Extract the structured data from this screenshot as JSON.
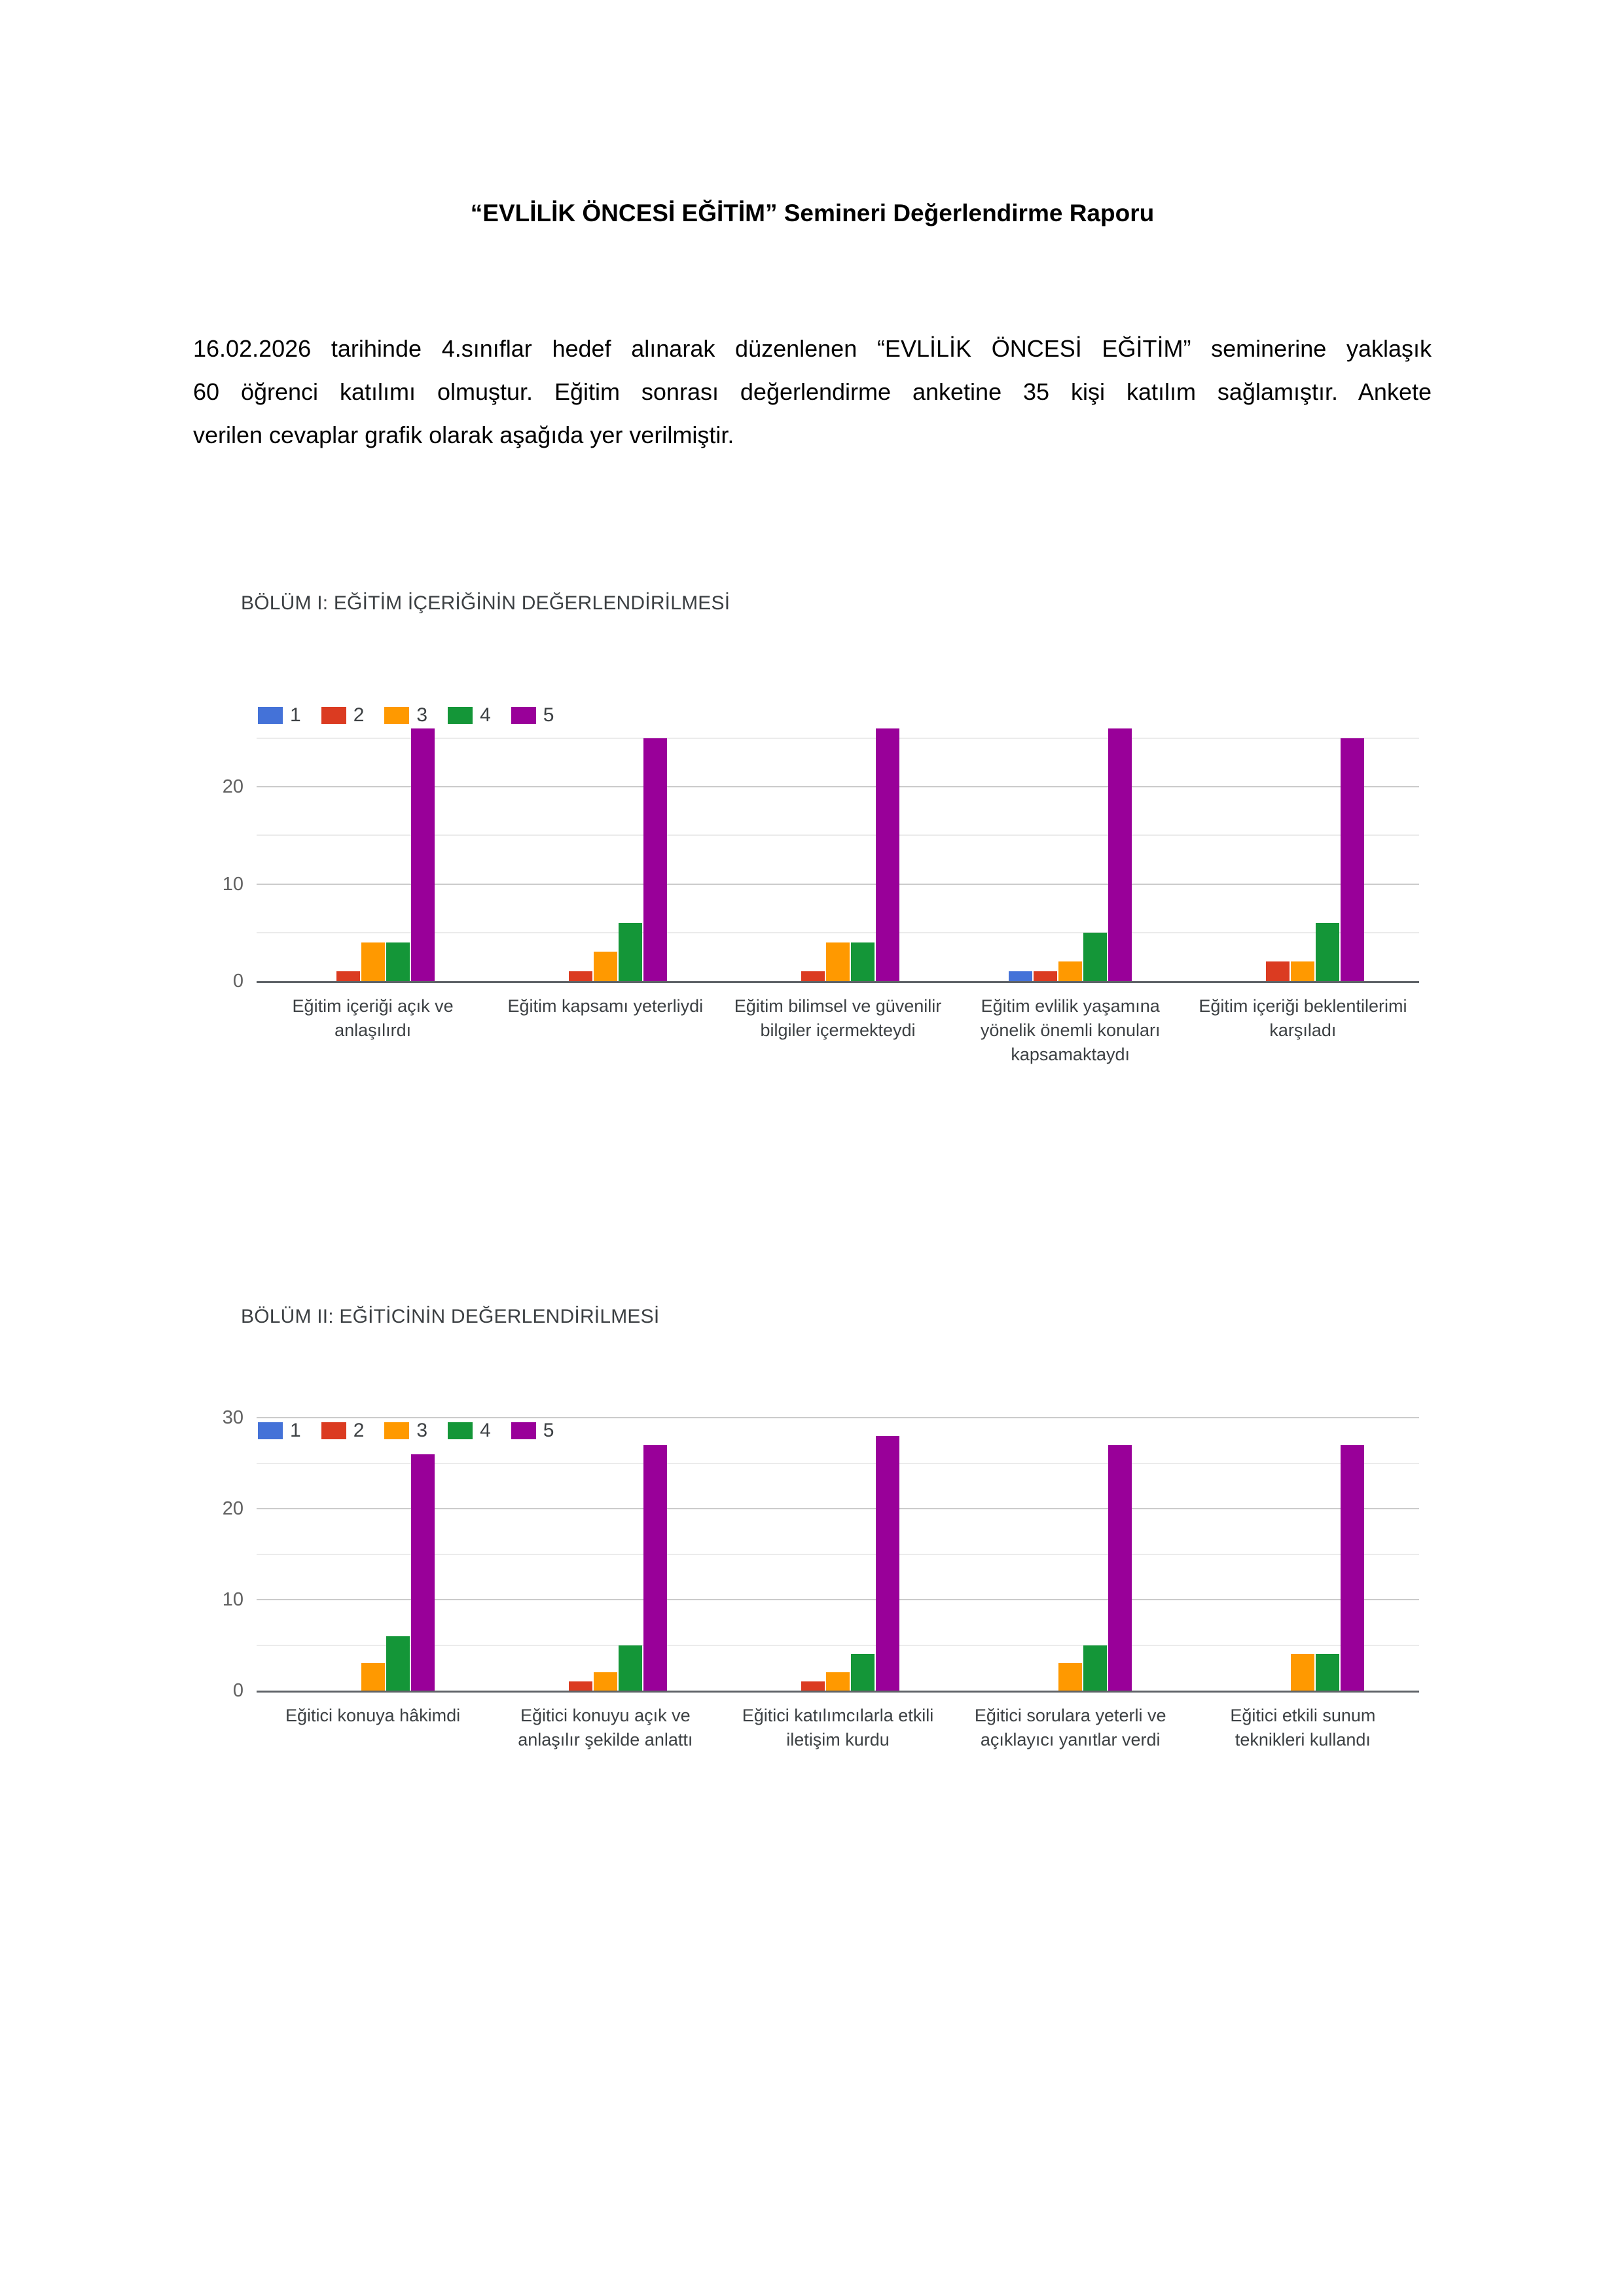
{
  "page": {
    "title": "“EVLİLİK ÖNCESİ EĞİTİM” Semineri Değerlendirme Raporu",
    "intro_lines": [
      "16.02.2026 tarihinde 4.sınıflar hedef alınarak düzenlenen “EVLİLİK ÖNCESİ EĞİTİM” seminerine yaklaşık",
      "60 öğrenci katılımı olmuştur. Eğitim sonrası değerlendirme anketine 35 kişi katılım sağlamıştır. Ankete",
      "verilen cevaplar grafik olarak aşağıda yer verilmiştir."
    ]
  },
  "colors": {
    "series": [
      "#4472D8",
      "#DB3B21",
      "#FF9900",
      "#149638",
      "#990099"
    ],
    "grid_major": "#cbcbcb",
    "grid_minor": "#ebebeb",
    "axis_line": "#5f6368",
    "tick_label": "#616161",
    "category_label": "#3c4043"
  },
  "chart_data": [
    {
      "type": "bar",
      "section_title": "BÖLÜM I: EĞİTİM İÇERİĞİNİN DEĞERLENDİRİLMESİ",
      "legend": [
        "1",
        "2",
        "3",
        "4",
        "5"
      ],
      "legend_position": "top-left",
      "grid": true,
      "categories": [
        "Eğitim içeriği açık ve\nanlaşılırdı",
        "Eğitim kapsamı yeterliydi",
        "Eğitim bilimsel ve güvenilir\nbilgiler içermekteydi",
        "Eğitim evlilik yaşamına\nyönelik önemli konuları\nkapsamaktaydı",
        "Eğitim içeriği beklentilerimi\nkarşıladı"
      ],
      "series": [
        {
          "name": "1",
          "values": [
            0,
            0,
            0,
            1,
            0
          ]
        },
        {
          "name": "2",
          "values": [
            1,
            1,
            1,
            1,
            2
          ]
        },
        {
          "name": "3",
          "values": [
            4,
            3,
            4,
            2,
            2
          ]
        },
        {
          "name": "4",
          "values": [
            4,
            6,
            4,
            5,
            6
          ]
        },
        {
          "name": "5",
          "values": [
            26,
            25,
            26,
            26,
            25
          ]
        }
      ],
      "ylim": [
        0,
        26.4
      ],
      "yticks": [
        0,
        10,
        20
      ],
      "gridline_step": 5,
      "xlabel": "",
      "ylabel": ""
    },
    {
      "type": "bar",
      "section_title": "BÖLÜM II: EĞİTİCİNİN DEĞERLENDİRİLMESİ",
      "legend": [
        "1",
        "2",
        "3",
        "4",
        "5"
      ],
      "legend_position": "top-left",
      "grid": true,
      "categories": [
        "Eğitici konuya hâkimdi",
        "Eğitici konuyu açık ve\nanlaşılır şekilde anlattı",
        "Eğitici katılımcılarla etkili\niletişim kurdu",
        "Eğitici sorulara yeterli ve\naçıklayıcı yanıtlar verdi",
        "Eğitici etkili sunum\nteknikleri kullandı"
      ],
      "series": [
        {
          "name": "1",
          "values": [
            0,
            0,
            0,
            0,
            0
          ]
        },
        {
          "name": "2",
          "values": [
            0,
            1,
            1,
            0,
            0
          ]
        },
        {
          "name": "3",
          "values": [
            3,
            2,
            2,
            3,
            4
          ]
        },
        {
          "name": "4",
          "values": [
            6,
            5,
            4,
            5,
            4
          ]
        },
        {
          "name": "5",
          "values": [
            26,
            27,
            28,
            27,
            27
          ]
        }
      ],
      "ylim": [
        0,
        30
      ],
      "yticks": [
        0,
        10,
        20,
        30
      ],
      "gridline_step": 5,
      "xlabel": "",
      "ylabel": ""
    }
  ]
}
